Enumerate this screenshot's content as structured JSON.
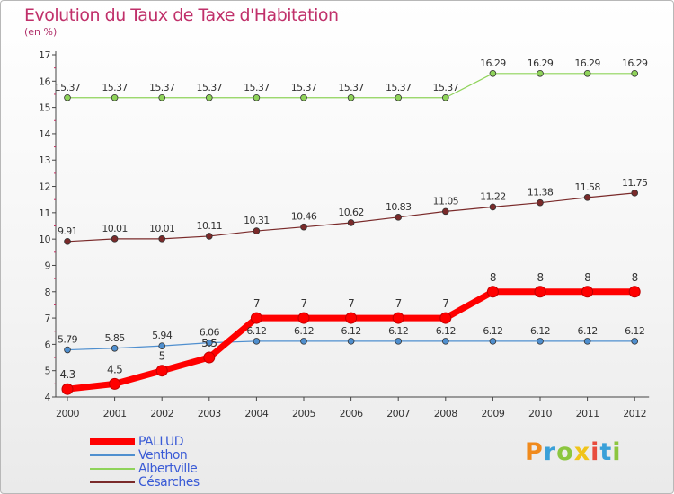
{
  "header": {
    "title": "Evolution du Taux de Taxe d'Habitation",
    "unit": "(en %)"
  },
  "brand": {
    "text": "Proxiti",
    "colors": [
      "#f08a1c",
      "#3aa0d8",
      "#8cc63f",
      "#f0c419",
      "#e84c3d",
      "#3aa0d8",
      "#8cc63f"
    ]
  },
  "chart_data": {
    "type": "line",
    "title": "Evolution du Taux de Taxe d'Habitation",
    "ylabel": "(en %)",
    "xlabel": "",
    "x": [
      "2000",
      "2001",
      "2002",
      "2003",
      "2004",
      "2005",
      "2006",
      "2007",
      "2008",
      "2009",
      "2010",
      "2011",
      "2012"
    ],
    "ylim": [
      4,
      17
    ],
    "yticks": [
      "4",
      "5",
      "6",
      "7",
      "8",
      "9",
      "10",
      "11",
      "12",
      "13",
      "14",
      "15",
      "16",
      "17"
    ],
    "grid": false,
    "legend": "bottom-left",
    "series": [
      {
        "name": "PALLUD",
        "color": "#ff0000",
        "values": [
          4.3,
          4.5,
          5,
          5.5,
          7,
          7,
          7,
          7,
          7,
          8,
          8,
          8,
          8
        ],
        "labels": [
          "4.3",
          "4.5",
          "5",
          "5.5",
          "7",
          "7",
          "7",
          "7",
          "7",
          "8",
          "8",
          "8",
          "8"
        ]
      },
      {
        "name": "Venthon",
        "color": "#4f8fcf",
        "values": [
          5.79,
          5.85,
          5.94,
          6.06,
          6.12,
          6.12,
          6.12,
          6.12,
          6.12,
          6.12,
          6.12,
          6.12,
          6.12
        ],
        "labels": [
          "5.79",
          "5.85",
          "5.94",
          "6.06",
          "6.12",
          "6.12",
          "6.12",
          "6.12",
          "6.12",
          "6.12",
          "6.12",
          "6.12",
          "6.12"
        ]
      },
      {
        "name": "Albertville",
        "color": "#8fd35a",
        "values": [
          15.37,
          15.37,
          15.37,
          15.37,
          15.37,
          15.37,
          15.37,
          15.37,
          15.37,
          16.29,
          16.29,
          16.29,
          16.29
        ],
        "labels": [
          "15.37",
          "15.37",
          "15.37",
          "15.37",
          "15.37",
          "15.37",
          "15.37",
          "15.37",
          "15.37",
          "16.29",
          "16.29",
          "16.29",
          "16.29"
        ]
      },
      {
        "name": "Césarches",
        "color": "#7a2a2a",
        "values": [
          9.91,
          10.01,
          10.01,
          10.11,
          10.31,
          10.46,
          10.62,
          10.83,
          11.05,
          11.22,
          11.38,
          11.58,
          11.75
        ],
        "labels": [
          "9.91",
          "10.01",
          "10.01",
          "10.11",
          "10.31",
          "10.46",
          "10.62",
          "10.83",
          "11.05",
          "11.22",
          "11.38",
          "11.58",
          "11.75"
        ]
      }
    ]
  }
}
